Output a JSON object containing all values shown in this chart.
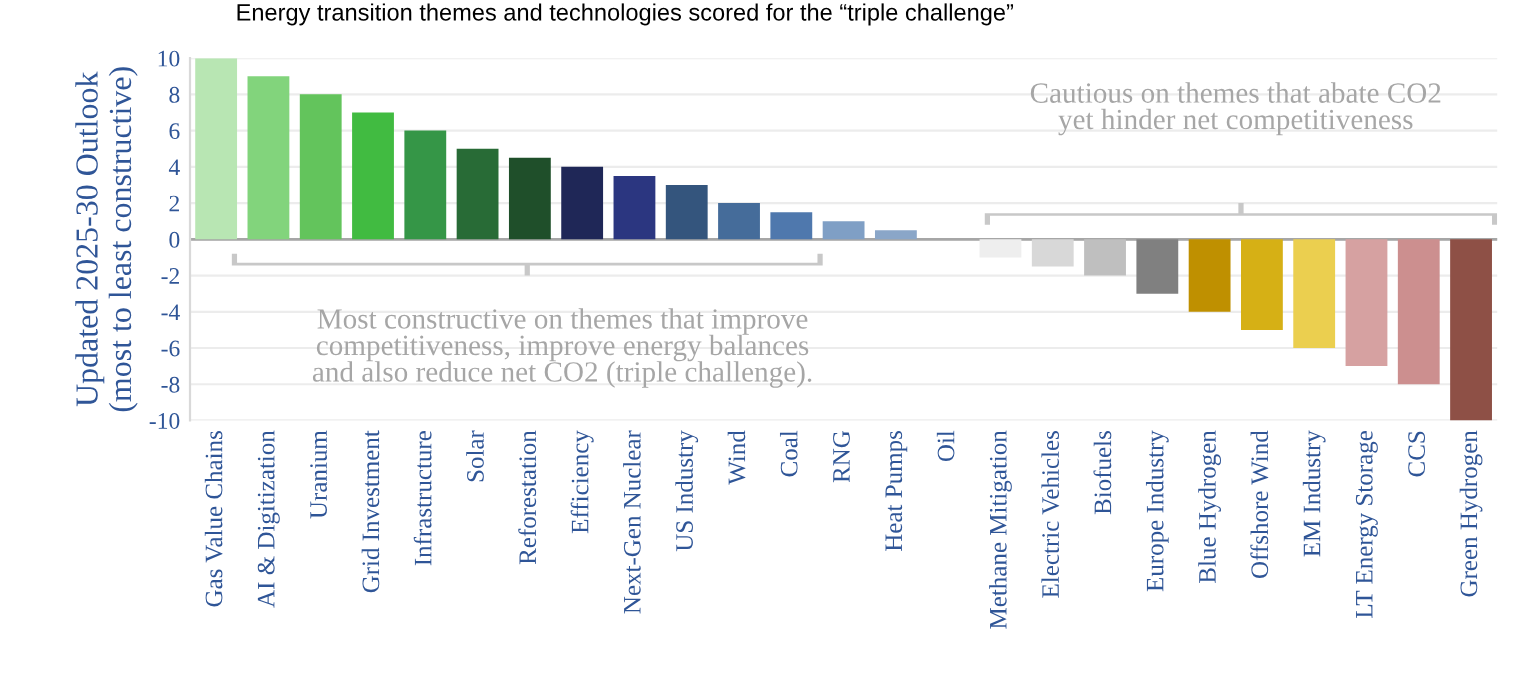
{
  "chart_data": {
    "type": "bar",
    "title": "Energy transition themes and technologies scored for the “triple challenge”",
    "ylabel": "Updated 2025-30 Outlook\n(most to least constructive)",
    "categories": [
      "Gas Value Chains",
      "AI & Digitization",
      "Uranium",
      "Grid Investment",
      "Infrastructure",
      "Solar",
      "Reforestation",
      "Efficiency",
      "Next-Gen Nuclear",
      "US Industry",
      "Wind",
      "Coal",
      "RNG",
      "Heat Pumps",
      "Oil",
      "Methane Mitigation",
      "Electric Vehicles",
      "Biofuels",
      "Europe Industry",
      "Blue Hydrogen",
      "Offshore Wind",
      "EM Industry",
      "LT Energy Storage",
      "CCS",
      "Green Hydrogen"
    ],
    "values": [
      10,
      9,
      8,
      7,
      6,
      5,
      4.5,
      4,
      3.5,
      3,
      2,
      1.5,
      1,
      0.5,
      0,
      -1,
      -1.5,
      -2,
      -3,
      -4,
      -5,
      -6,
      -7,
      -8,
      -10
    ],
    "colors": [
      "#b8e6b3",
      "#82d47c",
      "#63c45c",
      "#41bb41",
      "#359647",
      "#286b36",
      "#1f4f2a",
      "#1f2757",
      "#2b3680",
      "#34557d",
      "#456c9a",
      "#4f78ad",
      "#7f9fc5",
      "#8aa6c8",
      "#8aa6c8",
      "#eeeeee",
      "#d8d8d8",
      "#bfbfbf",
      "#808080",
      "#bf9000",
      "#d6b015",
      "#ebcf4f",
      "#d6a1a1",
      "#cc8f8f",
      "#8e5046"
    ],
    "ylim": [
      -10,
      10
    ],
    "yticks": [
      -10,
      -8,
      -6,
      -4,
      -2,
      0,
      2,
      4,
      6,
      8,
      10
    ],
    "grid": "y",
    "annotations": [
      "Most constructive on themes that improve\ncompetitiveness, improve energy balances\nand also reduce net CO2 (triple challenge).",
      "Cautious on themes that abate CO2\nyet hinder net competitiveness"
    ]
  }
}
